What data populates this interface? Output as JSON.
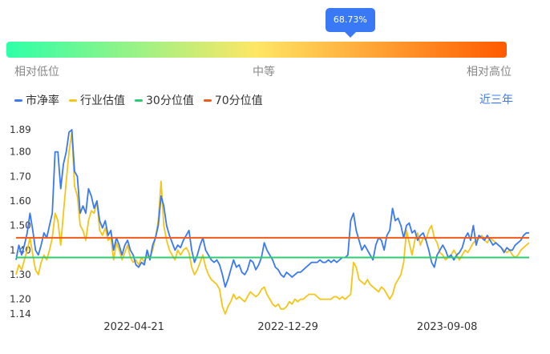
{
  "gauge": {
    "percentile_label": "68.73%",
    "percentile": 68.73,
    "colors": [
      "#2effa8",
      "#ffe665",
      "#ff5a00"
    ],
    "left_label": "相对低位",
    "mid_label": "中等",
    "right_label": "相对高位"
  },
  "range_button": "近三年",
  "chart_data": {
    "type": "line",
    "ylim": [
      1.14,
      1.89
    ],
    "y_ticks": [
      1.14,
      1.2,
      1.3,
      1.4,
      1.5,
      1.6,
      1.7,
      1.8,
      1.89
    ],
    "x_ticks": [
      "2022-04-21",
      "2022-12-29",
      "2023-09-08"
    ],
    "x_tick_positions": [
      0.23,
      0.53,
      0.84
    ],
    "series": [
      {
        "name": "市净率",
        "color": "#3a79f5",
        "values": [
          1.36,
          1.42,
          1.38,
          1.42,
          1.47,
          1.55,
          1.48,
          1.4,
          1.38,
          1.42,
          1.47,
          1.45,
          1.5,
          1.55,
          1.8,
          1.8,
          1.65,
          1.75,
          1.8,
          1.88,
          1.89,
          1.72,
          1.7,
          1.55,
          1.58,
          1.55,
          1.65,
          1.62,
          1.57,
          1.6,
          1.52,
          1.49,
          1.52,
          1.46,
          1.48,
          1.4,
          1.45,
          1.42,
          1.38,
          1.42,
          1.44,
          1.4,
          1.38,
          1.34,
          1.33,
          1.35,
          1.34,
          1.4,
          1.36,
          1.42,
          1.45,
          1.5,
          1.62,
          1.58,
          1.5,
          1.46,
          1.43,
          1.4,
          1.42,
          1.41,
          1.44,
          1.46,
          1.48,
          1.4,
          1.35,
          1.38,
          1.42,
          1.45,
          1.4,
          1.38,
          1.36,
          1.35,
          1.36,
          1.34,
          1.3,
          1.25,
          1.28,
          1.32,
          1.36,
          1.33,
          1.34,
          1.31,
          1.3,
          1.32,
          1.36,
          1.35,
          1.32,
          1.34,
          1.37,
          1.43,
          1.4,
          1.38,
          1.36,
          1.33,
          1.32,
          1.3,
          1.29,
          1.31,
          1.3,
          1.29,
          1.3,
          1.31,
          1.31,
          1.32,
          1.33,
          1.34,
          1.35,
          1.35,
          1.35,
          1.36,
          1.35,
          1.35,
          1.36,
          1.35,
          1.36,
          1.35,
          1.36,
          1.37,
          1.37,
          1.38,
          1.52,
          1.55,
          1.48,
          1.44,
          1.4,
          1.42,
          1.4,
          1.38,
          1.36,
          1.42,
          1.45,
          1.44,
          1.4,
          1.46,
          1.48,
          1.57,
          1.52,
          1.53,
          1.5,
          1.45,
          1.5,
          1.51,
          1.47,
          1.48,
          1.44,
          1.46,
          1.47,
          1.44,
          1.4,
          1.35,
          1.33,
          1.38,
          1.4,
          1.42,
          1.4,
          1.37,
          1.38,
          1.36,
          1.38,
          1.39,
          1.41,
          1.45,
          1.47,
          1.44,
          1.5,
          1.42,
          1.46,
          1.45,
          1.44,
          1.46,
          1.44,
          1.42,
          1.43,
          1.42,
          1.41,
          1.39,
          1.41,
          1.4,
          1.4,
          1.42,
          1.43,
          1.44,
          1.46,
          1.47,
          1.47
        ]
      },
      {
        "name": "行业估值",
        "color": "#f5c518",
        "values": [
          1.3,
          1.34,
          1.32,
          1.36,
          1.4,
          1.45,
          1.38,
          1.32,
          1.3,
          1.35,
          1.38,
          1.36,
          1.4,
          1.45,
          1.55,
          1.52,
          1.42,
          1.55,
          1.68,
          1.8,
          1.88,
          1.66,
          1.62,
          1.5,
          1.48,
          1.44,
          1.52,
          1.56,
          1.55,
          1.6,
          1.48,
          1.46,
          1.49,
          1.44,
          1.45,
          1.36,
          1.43,
          1.4,
          1.36,
          1.39,
          1.42,
          1.37,
          1.35,
          1.36,
          1.34,
          1.37,
          1.35,
          1.38,
          1.37,
          1.4,
          1.45,
          1.52,
          1.68,
          1.5,
          1.44,
          1.4,
          1.38,
          1.36,
          1.4,
          1.38,
          1.4,
          1.41,
          1.39,
          1.33,
          1.3,
          1.32,
          1.35,
          1.38,
          1.33,
          1.3,
          1.28,
          1.27,
          1.26,
          1.24,
          1.17,
          1.14,
          1.17,
          1.19,
          1.22,
          1.2,
          1.21,
          1.2,
          1.19,
          1.21,
          1.23,
          1.22,
          1.21,
          1.22,
          1.24,
          1.25,
          1.22,
          1.2,
          1.18,
          1.17,
          1.18,
          1.16,
          1.16,
          1.17,
          1.19,
          1.18,
          1.2,
          1.19,
          1.2,
          1.2,
          1.21,
          1.22,
          1.22,
          1.22,
          1.21,
          1.2,
          1.2,
          1.2,
          1.2,
          1.2,
          1.21,
          1.21,
          1.2,
          1.21,
          1.2,
          1.21,
          1.22,
          1.35,
          1.33,
          1.28,
          1.27,
          1.26,
          1.28,
          1.26,
          1.25,
          1.24,
          1.23,
          1.25,
          1.24,
          1.22,
          1.2,
          1.22,
          1.26,
          1.28,
          1.3,
          1.35,
          1.48,
          1.43,
          1.38,
          1.44,
          1.47,
          1.42,
          1.45,
          1.44,
          1.48,
          1.5,
          1.45,
          1.43,
          1.39,
          1.38,
          1.36,
          1.37,
          1.38,
          1.4,
          1.38,
          1.36,
          1.38,
          1.4,
          1.39,
          1.41,
          1.43,
          1.44,
          1.45,
          1.46,
          1.44,
          1.43,
          1.45,
          1.44,
          1.43,
          1.42,
          1.41,
          1.4,
          1.39,
          1.4,
          1.38,
          1.37,
          1.38,
          1.4,
          1.41,
          1.42,
          1.43
        ]
      },
      {
        "name": "30分位值",
        "color": "#2ecc71",
        "value": 1.37
      },
      {
        "name": "70分位值",
        "color": "#f05a1a",
        "value": 1.45
      }
    ]
  }
}
